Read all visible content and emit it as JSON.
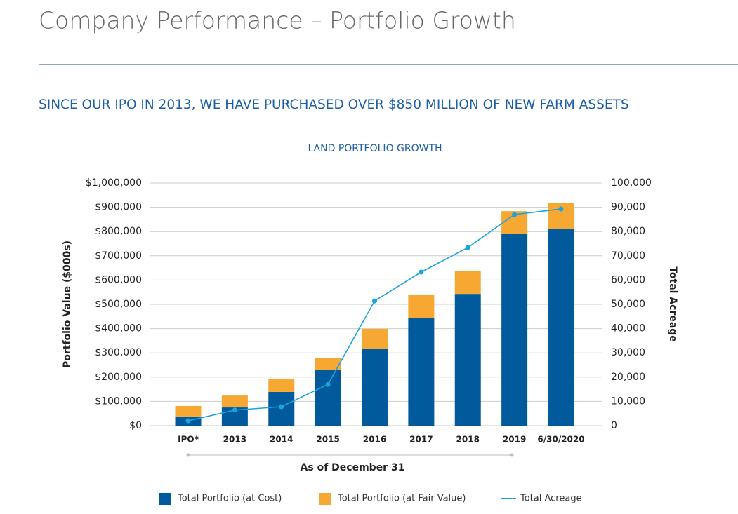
{
  "header": {
    "title": "Company Performance – Portfolio Growth",
    "subtitle": "SINCE OUR IPO IN 2013, WE HAVE PURCHASED OVER $850 MILLION OF NEW FARM ASSETS"
  },
  "chart_data": {
    "type": "bar",
    "stacked": true,
    "title": "LAND PORTFOLIO GROWTH",
    "categories": [
      "IPO*",
      "2013",
      "2014",
      "2015",
      "2016",
      "2017",
      "2018",
      "2019",
      "6/30/2020"
    ],
    "series": [
      {
        "name": "Total Portfolio (at Cost)",
        "color": "#005a9c",
        "values": [
          38000,
          75000,
          139000,
          231000,
          318000,
          445000,
          543000,
          789000,
          812000
        ]
      },
      {
        "name": "Total Portfolio (at Fair Value)",
        "color": "#f7a833",
        "values": [
          43000,
          49000,
          52000,
          49000,
          81000,
          95000,
          93000,
          95000,
          107000
        ]
      },
      {
        "name": "Total Acreage",
        "color": "#1aa3e0",
        "axis": "y2",
        "type": "line",
        "values": [
          2000,
          6400,
          7800,
          17000,
          51400,
          63300,
          73400,
          87000,
          89300
        ]
      }
    ],
    "y_label": "Portfolio Value ($000s)",
    "y2_label": "Total Acreage",
    "x_label": "As of December 31",
    "ylim": [
      0,
      1000000
    ],
    "yticks": [
      {
        "value": 0,
        "label": "$0"
      },
      {
        "value": 100000,
        "label": "$100,000"
      },
      {
        "value": 200000,
        "label": "$200,000"
      },
      {
        "value": 300000,
        "label": "$300,000"
      },
      {
        "value": 400000,
        "label": "$400,000"
      },
      {
        "value": 500000,
        "label": "$500,000"
      },
      {
        "value": 600000,
        "label": "$600,000"
      },
      {
        "value": 700000,
        "label": "$700,000"
      },
      {
        "value": 800000,
        "label": "$800,000"
      },
      {
        "value": 900000,
        "label": "$900,000"
      },
      {
        "value": 1000000,
        "label": "$1,000,000"
      }
    ],
    "y2lim": [
      0,
      100000
    ],
    "y2ticks": [
      0,
      {
        "value": 10000,
        "label": "10,000"
      },
      {
        "value": 20000,
        "label": "20,000"
      },
      {
        "value": 30000,
        "label": "30,000"
      },
      {
        "value": 40000,
        "label": "40,000"
      },
      {
        "value": 50000,
        "label": "50,000"
      },
      {
        "value": 60000,
        "label": "60,000"
      },
      {
        "value": 70000,
        "label": "70,000"
      },
      {
        "value": 80000,
        "label": "80,000"
      },
      {
        "value": 90000,
        "label": "90,000"
      },
      {
        "value": 100000,
        "label": "100,000"
      }
    ],
    "grid": true,
    "legend": "bottom"
  }
}
